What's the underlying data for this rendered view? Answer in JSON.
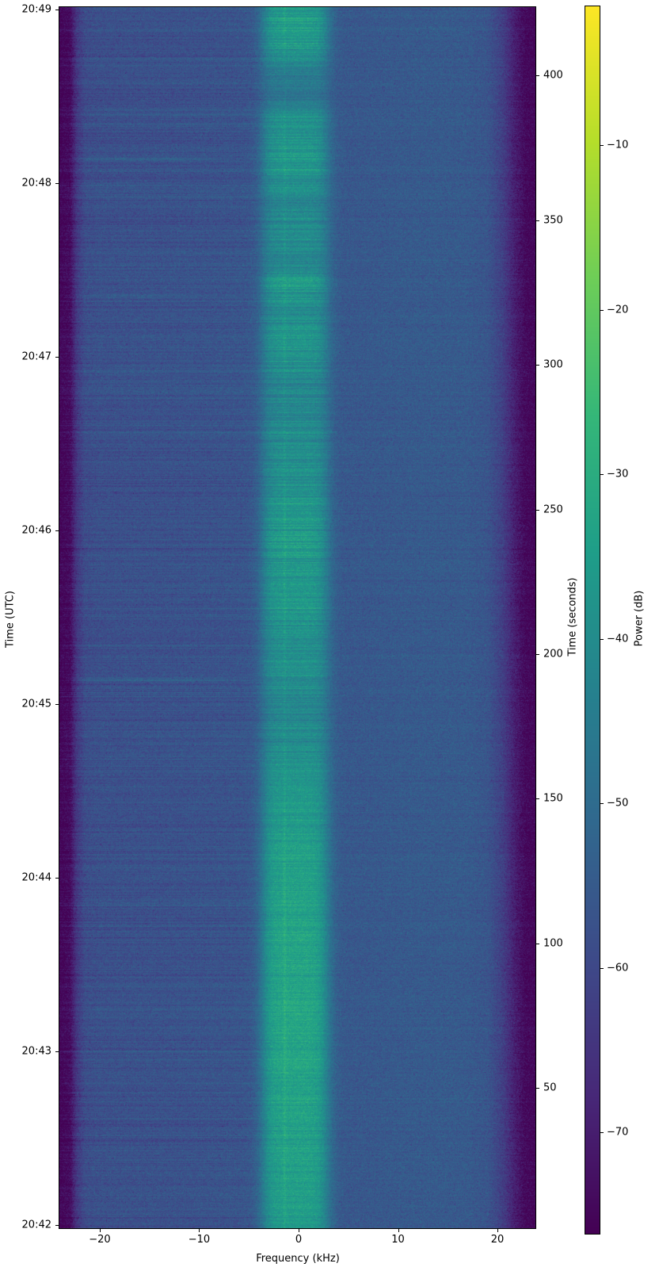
{
  "figure": {
    "kind": "spectrogram-waterfall",
    "background_color": "#ffffff",
    "xlabel": "Frequency (kHz)",
    "ylabel_left": "Time (UTC)",
    "ylabel_right": "Time (seconds)",
    "colorbar_label": "Power (dB)"
  },
  "chart_data": {
    "type": "heatmap",
    "title": "",
    "xlabel": "Frequency (kHz)",
    "ylabel": "Time (UTC)",
    "ylabel_secondary": "Time (seconds)",
    "colorbar_label": "Power (dB)",
    "colormap": "viridis",
    "grid": false,
    "xlim_khz": [
      -24.14,
      23.9
    ],
    "x_ticks": [
      {
        "value": -20,
        "label": "−20"
      },
      {
        "value": -10,
        "label": "−10"
      },
      {
        "value": 0,
        "label": "0"
      },
      {
        "value": 10,
        "label": "10"
      },
      {
        "value": 20,
        "label": "20"
      }
    ],
    "utc_ticks": [
      {
        "label": "20:49"
      },
      {
        "label": "20:48"
      },
      {
        "label": "20:47"
      },
      {
        "label": "20:46"
      },
      {
        "label": "20:45"
      },
      {
        "label": "20:44"
      },
      {
        "label": "20:43"
      },
      {
        "label": "20:42"
      }
    ],
    "seconds_ticks": [
      {
        "value": 50,
        "label": "50"
      },
      {
        "value": 100,
        "label": "100"
      },
      {
        "value": 150,
        "label": "150"
      },
      {
        "value": 200,
        "label": "200"
      },
      {
        "value": 250,
        "label": "250"
      },
      {
        "value": 300,
        "label": "300"
      },
      {
        "value": 350,
        "label": "350"
      },
      {
        "value": 400,
        "label": "400"
      }
    ],
    "time_span_utc": [
      "20:42",
      "20:49"
    ],
    "duration_seconds": 424,
    "power_range_db": [
      -76.2,
      -1.5
    ],
    "colorbar_ticks": [
      {
        "value": -10,
        "label": "−10"
      },
      {
        "value": -20,
        "label": "−20"
      },
      {
        "value": -30,
        "label": "−30"
      },
      {
        "value": -40,
        "label": "−40"
      },
      {
        "value": -50,
        "label": "−50"
      },
      {
        "value": -60,
        "label": "−60"
      },
      {
        "value": -70,
        "label": "−70"
      }
    ],
    "viridis_stops": [
      "#440154",
      "#482878",
      "#3e4a89",
      "#31688e",
      "#26828e",
      "#1f9e89",
      "#35b779",
      "#6ece58",
      "#b5de2b",
      "#fde725"
    ],
    "background_level_db": -56,
    "signal_band": {
      "from_khz": -3.6,
      "to_khz": 2.9,
      "carrier_khz": -1.4,
      "peak_boost_db": 21.5,
      "description": "strong modulated signal centered near 0 kHz; solid and bright in lower half (20:42–20:45), intermittent speech-like bursts with horizontal striations in upper half (20:46–20:49)"
    },
    "freq_profile_db": [
      [
        -24.14,
        -75.5
      ],
      [
        -23.0,
        -74.0
      ],
      [
        -22.3,
        -64.0
      ],
      [
        -21.5,
        -58.8
      ],
      [
        -20.0,
        -57.8
      ],
      [
        -10.0,
        -57.2
      ],
      [
        -4.0,
        -56.6
      ],
      [
        0.0,
        -56.2
      ],
      [
        5.0,
        -55.8
      ],
      [
        12.0,
        -55.1
      ],
      [
        17.0,
        -55.2
      ],
      [
        19.0,
        -56.5
      ],
      [
        20.5,
        -62.0
      ],
      [
        21.8,
        -70.0
      ],
      [
        22.8,
        -74.5
      ],
      [
        23.9,
        -75.5
      ]
    ],
    "band_activity_profile": [
      [
        0.0,
        0.95
      ],
      [
        0.03,
        1.0
      ],
      [
        0.05,
        0.55
      ],
      [
        0.075,
        0.45
      ],
      [
        0.09,
        0.8
      ],
      [
        0.105,
        0.9
      ],
      [
        0.13,
        0.95
      ],
      [
        0.16,
        0.65
      ],
      [
        0.185,
        0.8
      ],
      [
        0.21,
        0.6
      ],
      [
        0.225,
        0.95
      ],
      [
        0.25,
        0.75
      ],
      [
        0.28,
        0.9
      ],
      [
        0.31,
        0.65
      ],
      [
        0.345,
        0.75
      ],
      [
        0.38,
        0.8
      ],
      [
        0.405,
        0.9
      ],
      [
        0.42,
        1.0
      ],
      [
        0.45,
        0.95
      ],
      [
        0.48,
        0.9
      ],
      [
        0.52,
        0.85
      ],
      [
        0.55,
        0.8
      ],
      [
        0.575,
        0.65
      ],
      [
        0.61,
        0.8
      ],
      [
        0.65,
        0.95
      ],
      [
        0.7,
        1.05
      ],
      [
        0.78,
        1.1
      ],
      [
        0.86,
        1.1
      ],
      [
        0.93,
        1.05
      ],
      [
        1.0,
        0.97
      ]
    ],
    "left_streaks": [
      {
        "y_frac": 0.1245,
        "from_khz": -22.5,
        "to_khz": -8.5,
        "boost_db": 4.0
      },
      {
        "y_frac": 0.145,
        "from_khz": -22.0,
        "to_khz": -12.0,
        "boost_db": 2.0
      },
      {
        "y_frac": 0.196,
        "from_khz": -21.5,
        "to_khz": -13.0,
        "boost_db": 1.5
      },
      {
        "y_frac": 0.236,
        "from_khz": -22.0,
        "to_khz": -11.0,
        "boost_db": 2.2
      },
      {
        "y_frac": 0.3,
        "from_khz": -21.0,
        "to_khz": -14.0,
        "boost_db": 1.3
      },
      {
        "y_frac": 0.45,
        "from_khz": -22.0,
        "to_khz": -14.0,
        "boost_db": 1.8
      },
      {
        "y_frac": 0.5506,
        "from_khz": -22.5,
        "to_khz": -7.0,
        "boost_db": 5.0
      },
      {
        "y_frac": 0.58,
        "from_khz": -21.0,
        "to_khz": -13.0,
        "boost_db": 1.5
      },
      {
        "y_frac": 0.64,
        "from_khz": -22.0,
        "to_khz": -15.0,
        "boost_db": 1.2
      },
      {
        "y_frac": 0.935,
        "from_khz": -22.5,
        "to_khz": -16.0,
        "boost_db": 1.5
      }
    ],
    "noise_sigma_db": 2.3,
    "row_jitter_sigma_db": 1.2
  }
}
